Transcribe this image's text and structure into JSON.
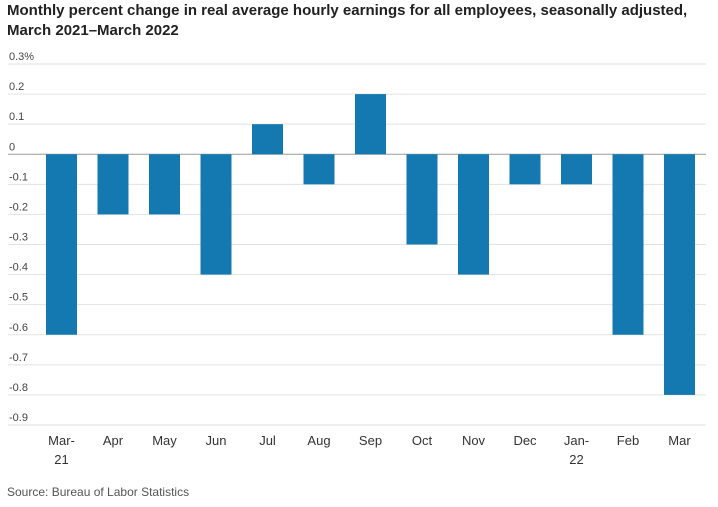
{
  "chart_data": {
    "type": "bar",
    "title": "Monthly percent change in real average hourly earnings for all employees, seasonally adjusted, March 2021–March 2022",
    "source": "Source: Bureau of Labor Statistics",
    "categories": [
      [
        "Mar-",
        "21"
      ],
      [
        "Apr"
      ],
      [
        "May"
      ],
      [
        "Jun"
      ],
      [
        "Jul"
      ],
      [
        "Aug"
      ],
      [
        "Sep"
      ],
      [
        "Oct"
      ],
      [
        "Nov"
      ],
      [
        "Dec"
      ],
      [
        "Jan-",
        "22"
      ],
      [
        "Feb"
      ],
      [
        "Mar"
      ]
    ],
    "values": [
      -0.6,
      -0.2,
      -0.2,
      -0.4,
      0.1,
      -0.1,
      0.2,
      -0.3,
      -0.4,
      -0.1,
      -0.1,
      -0.6,
      -0.8
    ],
    "yticks": [
      0.3,
      0.2,
      0.1,
      0,
      -0.1,
      -0.2,
      -0.3,
      -0.4,
      -0.5,
      -0.6,
      -0.7,
      -0.8,
      -0.9
    ],
    "ytick_labels": [
      "0.3%",
      "0.2",
      "0.1",
      "0",
      "-0.1",
      "-0.2",
      "-0.3",
      "-0.4",
      "-0.5",
      "-0.6",
      "-0.7",
      "-0.8",
      "-0.9"
    ],
    "ylim": [
      -0.9,
      0.3
    ],
    "xlabel": "",
    "ylabel": "",
    "bar_color": "#1479b0",
    "grid": true
  }
}
